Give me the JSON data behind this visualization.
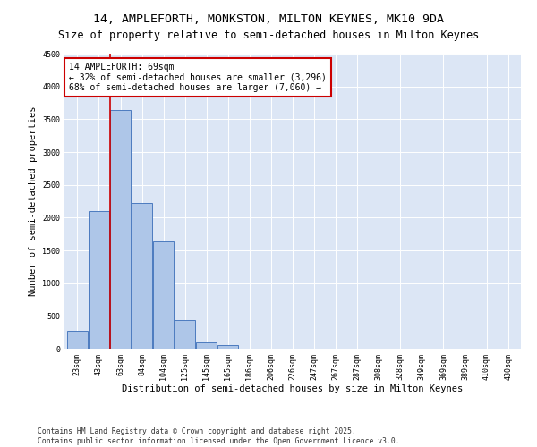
{
  "title": "14, AMPLEFORTH, MONKSTON, MILTON KEYNES, MK10 9DA",
  "subtitle": "Size of property relative to semi-detached houses in Milton Keynes",
  "xlabel": "Distribution of semi-detached houses by size in Milton Keynes",
  "ylabel": "Number of semi-detached properties",
  "categories": [
    "23sqm",
    "43sqm",
    "63sqm",
    "84sqm",
    "104sqm",
    "125sqm",
    "145sqm",
    "165sqm",
    "186sqm",
    "206sqm",
    "226sqm",
    "247sqm",
    "267sqm",
    "287sqm",
    "308sqm",
    "328sqm",
    "349sqm",
    "369sqm",
    "389sqm",
    "410sqm",
    "430sqm"
  ],
  "values": [
    270,
    2100,
    3640,
    2220,
    1630,
    440,
    100,
    55,
    0,
    0,
    0,
    0,
    0,
    0,
    0,
    0,
    0,
    0,
    0,
    0,
    0
  ],
  "bar_color": "#aec6e8",
  "bar_edge_color": "#4c7bbf",
  "vline_color": "#cc0000",
  "annotation_title": "14 AMPLEFORTH: 69sqm",
  "annotation_line1": "← 32% of semi-detached houses are smaller (3,296)",
  "annotation_line2": "68% of semi-detached houses are larger (7,060) →",
  "annotation_box_color": "#cc0000",
  "ylim": [
    0,
    4500
  ],
  "yticks": [
    0,
    500,
    1000,
    1500,
    2000,
    2500,
    3000,
    3500,
    4000,
    4500
  ],
  "bg_color": "#dce6f5",
  "fig_bg_color": "#ffffff",
  "footnote": "Contains HM Land Registry data © Crown copyright and database right 2025.\nContains public sector information licensed under the Open Government Licence v3.0.",
  "title_fontsize": 9.5,
  "subtitle_fontsize": 8.5,
  "xlabel_fontsize": 7.5,
  "ylabel_fontsize": 7.5,
  "tick_fontsize": 6.0,
  "annotation_fontsize": 7.0,
  "footnote_fontsize": 5.8
}
